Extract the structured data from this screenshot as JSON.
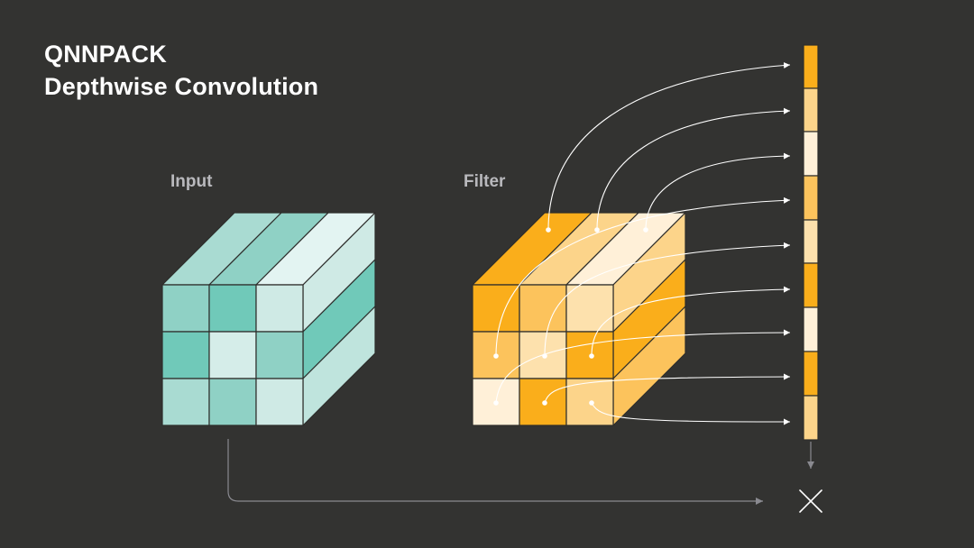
{
  "title": {
    "line1": "QNNPACK",
    "line2": "Depthwise Convolution"
  },
  "labels": {
    "input": "Input",
    "filter": "Filter"
  },
  "colors": {
    "background": "#333331",
    "teal": {
      "light": "#e3f4f2",
      "pale": "#cfeae5",
      "mid": "#a9dbd2",
      "base": "#8fd1c5",
      "deep": "#70c9b9"
    },
    "orange": {
      "deep": "#faae1b",
      "mid": "#fcc35c",
      "light": "#fcd48a",
      "pale": "#fde1ad",
      "lightest": "#fff0d8"
    },
    "arrow": "#ffffff",
    "connector": "#8a8a90"
  },
  "icons": {
    "multiply": "multiply-x-icon"
  }
}
